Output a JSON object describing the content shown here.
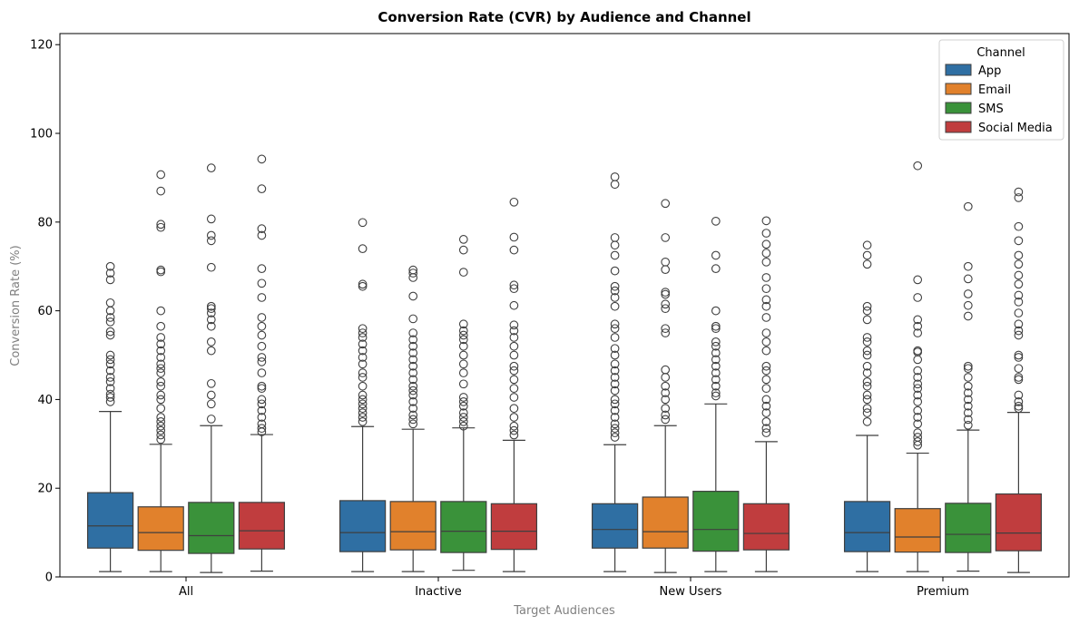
{
  "chart_data": {
    "type": "box",
    "title": "Conversion Rate (CVR) by Audience and Channel",
    "xlabel": "Target Audiences",
    "ylabel": "Conversion Rate (%)",
    "ylim": [
      0,
      122.5
    ],
    "yticks": [
      0,
      20,
      40,
      60,
      80,
      100,
      120
    ],
    "categories": [
      "All",
      "Inactive",
      "New Users",
      "Premium"
    ],
    "legend": {
      "title": "Channel",
      "placement": "top-right"
    },
    "grid": false,
    "series": [
      {
        "name": "App",
        "color": "#2f6fa3",
        "boxes": [
          {
            "min": 1.2,
            "q1": 6.5,
            "median": 11.5,
            "q3": 19.0,
            "max": 37.3,
            "outliers": [
              39.5,
              40.5,
              41.2,
              42.5,
              44.0,
              45.0,
              46.5,
              48.0,
              49.0,
              50.0,
              54.5,
              55.3,
              57.5,
              58.5,
              60.0,
              61.8,
              67.0,
              68.5,
              70.0
            ]
          },
          {
            "min": 1.2,
            "q1": 5.7,
            "median": 10.0,
            "q3": 17.2,
            "max": 33.9,
            "outliers": [
              35.0,
              36.0,
              37.0,
              38.0,
              39.0,
              40.0,
              41.0,
              43.0,
              45.0,
              46.0,
              48.0,
              49.5,
              51.0,
              52.5,
              54.0,
              55.0,
              56.0,
              65.5,
              66.0,
              74.0,
              79.9
            ]
          },
          {
            "min": 1.2,
            "q1": 6.5,
            "median": 10.7,
            "q3": 16.5,
            "max": 29.8,
            "outliers": [
              31.5,
              32.5,
              33.5,
              34.5,
              36.0,
              37.5,
              39.0,
              40.0,
              42.0,
              43.5,
              45.0,
              46.5,
              48.0,
              50.0,
              51.5,
              54.0,
              56.0,
              57.0,
              61.0,
              63.0,
              64.5,
              65.5,
              69.0,
              72.5,
              74.8,
              76.5,
              88.5,
              90.2
            ]
          },
          {
            "min": 1.2,
            "q1": 5.7,
            "median": 10.0,
            "q3": 17.0,
            "max": 31.9,
            "outliers": [
              35.0,
              37.0,
              38.0,
              40.0,
              41.0,
              43.0,
              44.0,
              46.0,
              47.5,
              50.0,
              51.0,
              53.0,
              54.0,
              58.0,
              60.0,
              61.0,
              70.5,
              72.5,
              74.8
            ]
          }
        ]
      },
      {
        "name": "Email",
        "color": "#e1812c",
        "boxes": [
          {
            "min": 1.2,
            "q1": 6.0,
            "median": 10.0,
            "q3": 15.8,
            "max": 29.9,
            "outliers": [
              31.0,
              32.0,
              33.0,
              34.0,
              35.0,
              36.0,
              38.0,
              40.0,
              41.0,
              43.0,
              44.0,
              46.0,
              47.0,
              48.0,
              49.5,
              51.0,
              52.5,
              54.0,
              56.5,
              60.0,
              68.8,
              69.2,
              78.8,
              79.5,
              87.0,
              90.7
            ]
          },
          {
            "min": 1.2,
            "q1": 6.1,
            "median": 10.2,
            "q3": 17.0,
            "max": 33.3,
            "outliers": [
              34.5,
              35.5,
              36.5,
              38.0,
              39.5,
              41.0,
              42.0,
              43.0,
              44.5,
              46.0,
              47.5,
              49.0,
              50.5,
              52.0,
              53.5,
              55.0,
              58.2,
              63.3,
              67.5,
              68.5,
              69.2
            ]
          },
          {
            "min": 1.0,
            "q1": 6.5,
            "median": 10.2,
            "q3": 18.0,
            "max": 34.1,
            "outliers": [
              35.5,
              36.5,
              38.0,
              40.0,
              41.5,
              43.0,
              45.0,
              46.7,
              55.0,
              56.0,
              60.5,
              61.5,
              63.7,
              64.2,
              69.3,
              71.0,
              76.5,
              84.2
            ]
          },
          {
            "min": 1.2,
            "q1": 5.6,
            "median": 9.0,
            "q3": 15.4,
            "max": 27.9,
            "outliers": [
              29.7,
              30.5,
              31.5,
              32.5,
              34.5,
              36.0,
              37.5,
              39.5,
              41.0,
              42.5,
              43.5,
              45.0,
              46.5,
              49.0,
              50.7,
              51.0,
              55.0,
              56.5,
              58.0,
              63.0,
              67.0,
              92.7
            ]
          }
        ]
      },
      {
        "name": "SMS",
        "color": "#3a923a",
        "boxes": [
          {
            "min": 1.0,
            "q1": 5.3,
            "median": 9.3,
            "q3": 16.8,
            "max": 34.1,
            "outliers": [
              35.6,
              39.0,
              41.0,
              43.6,
              51.0,
              53.0,
              56.5,
              58.0,
              59.5,
              60.5,
              61.0,
              69.8,
              75.8,
              77.0,
              80.7,
              92.2
            ]
          },
          {
            "min": 1.5,
            "q1": 5.5,
            "median": 10.3,
            "q3": 17.0,
            "max": 33.6,
            "outliers": [
              34.0,
              35.0,
              36.0,
              37.0,
              38.5,
              39.5,
              40.5,
              43.5,
              46.0,
              48.0,
              50.0,
              52.0,
              53.5,
              54.5,
              55.5,
              57.0,
              68.7,
              73.7,
              76.1
            ]
          },
          {
            "min": 1.2,
            "q1": 5.8,
            "median": 10.7,
            "q3": 19.3,
            "max": 39.0,
            "outliers": [
              40.8,
              41.5,
              43.0,
              44.5,
              46.0,
              47.5,
              49.0,
              50.5,
              52.0,
              53.0,
              56.0,
              56.5,
              60.0,
              69.5,
              72.5,
              80.2
            ]
          },
          {
            "min": 1.3,
            "q1": 5.5,
            "median": 9.6,
            "q3": 16.6,
            "max": 33.1,
            "outliers": [
              34.2,
              35.5,
              37.0,
              38.5,
              40.0,
              41.5,
              43.0,
              45.0,
              47.0,
              47.5,
              58.8,
              61.2,
              63.8,
              67.2,
              70.0,
              83.5
            ]
          }
        ]
      },
      {
        "name": "Social Media",
        "color": "#c03d3e",
        "boxes": [
          {
            "min": 1.3,
            "q1": 6.3,
            "median": 10.4,
            "q3": 16.8,
            "max": 32.1,
            "outliers": [
              32.7,
              33.5,
              34.5,
              36.0,
              37.5,
              39.0,
              40.0,
              42.5,
              43.0,
              46.0,
              48.5,
              49.5,
              52.0,
              54.5,
              56.5,
              58.5,
              63.0,
              66.2,
              69.5,
              77.0,
              78.5,
              87.5,
              94.2
            ]
          },
          {
            "min": 1.2,
            "q1": 6.2,
            "median": 10.3,
            "q3": 16.5,
            "max": 30.8,
            "outliers": [
              32.0,
              33.0,
              34.0,
              36.0,
              38.0,
              40.5,
              42.5,
              44.5,
              46.5,
              47.5,
              50.0,
              52.0,
              54.0,
              55.5,
              56.8,
              61.2,
              65.0,
              65.8,
              73.7,
              76.6,
              84.5
            ]
          },
          {
            "min": 1.2,
            "q1": 6.1,
            "median": 9.8,
            "q3": 16.5,
            "max": 30.5,
            "outliers": [
              32.5,
              33.5,
              35.0,
              37.0,
              38.5,
              40.0,
              42.5,
              44.5,
              46.5,
              47.5,
              51.0,
              53.0,
              55.0,
              58.5,
              61.0,
              62.5,
              65.0,
              67.5,
              71.0,
              73.0,
              75.0,
              77.5,
              80.3
            ]
          },
          {
            "min": 1.0,
            "q1": 5.9,
            "median": 9.9,
            "q3": 18.7,
            "max": 37.1,
            "outliers": [
              38.0,
              38.5,
              39.5,
              41.0,
              44.5,
              45.0,
              47.0,
              49.5,
              50.0,
              54.5,
              55.5,
              57.0,
              59.5,
              62.0,
              63.5,
              66.0,
              68.0,
              70.5,
              72.5,
              75.8,
              79.0,
              85.5,
              86.8
            ]
          }
        ]
      }
    ]
  }
}
